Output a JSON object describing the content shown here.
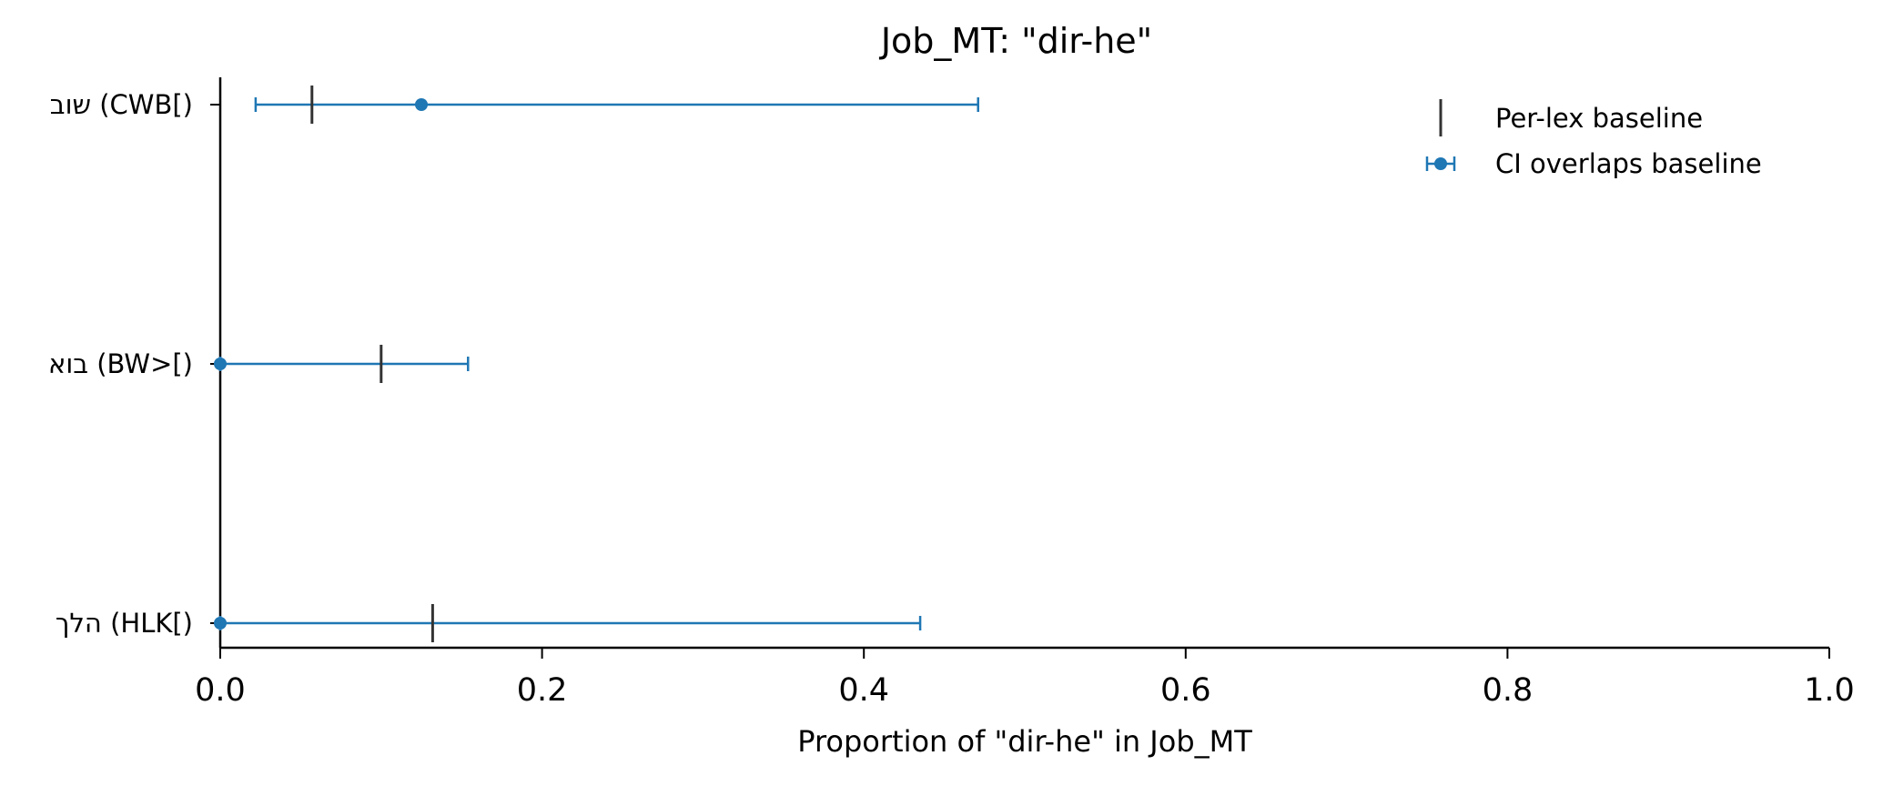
{
  "chart_data": {
    "type": "errorbar",
    "title": "Job_MT: \"dir-he\"",
    "xlabel": "Proportion of \"dir-he\" in Job_MT",
    "ylabel": "",
    "xlim": [
      0.0,
      1.0
    ],
    "xticks": [
      "0.0",
      "0.2",
      "0.4",
      "0.6",
      "0.8",
      "1.0"
    ],
    "grid": false,
    "legend_position": "top-right",
    "categories": [
      {
        "label": "שוב (CWB[)",
        "value": 0.125,
        "ci_low": 0.022,
        "ci_high": 0.471,
        "baseline": 0.057
      },
      {
        "label": "בוא (BW>[)",
        "value": 0.0,
        "ci_low": 0.0,
        "ci_high": 0.154,
        "baseline": 0.1
      },
      {
        "label": "הלך (HLK[)",
        "value": 0.0,
        "ci_low": 0.0,
        "ci_high": 0.435,
        "baseline": 0.132
      }
    ],
    "legend": [
      {
        "label": "Per-lex baseline",
        "symbol": "vertical-tick",
        "color": "#333333"
      },
      {
        "label": "CI overlaps baseline",
        "symbol": "point-with-errorbar",
        "color": "#1f77b4"
      }
    ],
    "colors": {
      "series": "#1f77b4",
      "baseline": "#333333",
      "axis": "#000000"
    }
  }
}
